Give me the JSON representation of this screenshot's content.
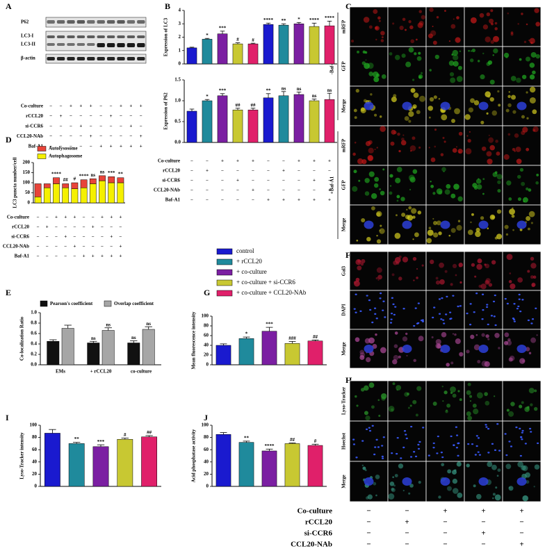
{
  "figure": {
    "panel_labels": [
      "A",
      "B",
      "C",
      "D",
      "E",
      "F",
      "G",
      "H",
      "I",
      "J"
    ],
    "blot_bands": [
      "P62",
      "LC3-I",
      "LC3-II",
      "β-actin"
    ],
    "conditions_10": [
      {
        "label": "Co-culture",
        "marks": [
          "−",
          "−",
          "+",
          "+",
          "+",
          "−",
          "−",
          "+",
          "+",
          "+"
        ]
      },
      {
        "label": "rCCL20",
        "marks": [
          "−",
          "+",
          "−",
          "−",
          "−",
          "−",
          "+",
          "−",
          "−",
          "−"
        ]
      },
      {
        "label": "si-CCR6",
        "marks": [
          "−",
          "−",
          "−",
          "+",
          "−",
          "−",
          "−",
          "−",
          "+",
          "−"
        ]
      },
      {
        "label": "CCL20-NAb",
        "marks": [
          "−",
          "−",
          "−",
          "−",
          "+",
          "−",
          "−",
          "−",
          "−",
          "+"
        ]
      },
      {
        "label": "Baf-A1",
        "marks": [
          "−",
          "−",
          "−",
          "−",
          "−",
          "+",
          "+",
          "+",
          "+",
          "+"
        ]
      }
    ],
    "conditions_5": [
      {
        "label": "Co-culture",
        "marks": [
          "−",
          "−",
          "+",
          "+",
          "+"
        ]
      },
      {
        "label": "rCCL20",
        "marks": [
          "−",
          "+",
          "−",
          "−",
          "−"
        ]
      },
      {
        "label": "si-CCR6",
        "marks": [
          "−",
          "−",
          "−",
          "+",
          "−"
        ]
      },
      {
        "label": "CCL20-NAb",
        "marks": [
          "−",
          "−",
          "−",
          "−",
          "+"
        ]
      }
    ],
    "imaging_c": {
      "groups": [
        "-Baf-A1",
        "+Baf-A1"
      ],
      "rows": [
        "mRFP",
        "GFP",
        "Merge"
      ]
    },
    "imaging_f": {
      "rows": [
        "Gal3",
        "DAPI",
        "Merge"
      ]
    },
    "imaging_h": {
      "rows": [
        "Lyso-Tracker",
        "Hoechst",
        "Merge"
      ]
    }
  },
  "chart_data": [
    {
      "type": "bar",
      "ylabel": "Expression of LC3",
      "ylim": [
        0,
        4
      ],
      "yticks": [
        0,
        1,
        2,
        3,
        4
      ],
      "values": [
        1.2,
        1.85,
        2.25,
        1.5,
        1.5,
        2.95,
        2.9,
        3.0,
        2.8,
        2.85
      ],
      "errors": [
        0.05,
        0.06,
        0.2,
        0.08,
        0.05,
        0.1,
        0.1,
        0.1,
        0.25,
        0.35
      ],
      "annotations": [
        "",
        "*",
        "***",
        "#",
        "#",
        "****",
        "**",
        "*",
        "****",
        "****"
      ],
      "colors": [
        "#1a1acf",
        "#1f8a9c",
        "#7b1fa2",
        "#c8c832",
        "#e0206a",
        "#1a1acf",
        "#1f8a9c",
        "#7b1fa2",
        "#c8c832",
        "#e0206a"
      ]
    },
    {
      "type": "bar",
      "ylabel": "Expression of P62",
      "ylim": [
        0,
        1.5
      ],
      "yticks": [
        {
          "value": 0,
          "label": "0.0"
        },
        0.5,
        {
          "value": 1,
          "label": "1.0"
        },
        1.5
      ],
      "values": [
        0.75,
        1.0,
        1.12,
        0.78,
        0.78,
        1.07,
        1.12,
        1.15,
        1.0,
        1.03
      ],
      "errors": [
        0.05,
        0.03,
        0.05,
        0.04,
        0.04,
        0.1,
        0.1,
        0.06,
        0.04,
        0.15
      ],
      "annotations": [
        "",
        "*",
        "***",
        "##",
        "##",
        "**",
        "ns",
        "ns",
        "ns",
        "ns"
      ],
      "colors": [
        "#1a1acf",
        "#1f8a9c",
        "#7b1fa2",
        "#c8c832",
        "#e0206a",
        "#1a1acf",
        "#1f8a9c",
        "#7b1fa2",
        "#c8c832",
        "#e0206a"
      ]
    },
    {
      "type": "stacked_bar",
      "ylabel": "LC3 puncta number/cell",
      "ylim": [
        0,
        200
      ],
      "yticks": [
        0,
        50,
        100,
        150,
        200
      ],
      "series": [
        {
          "name": "Autolysosome",
          "color": "#e8443a",
          "values": [
            65,
            20,
            30,
            20,
            30,
            40,
            25,
            25,
            30,
            25
          ]
        },
        {
          "name": "Autophagosome",
          "color": "#f5f000",
          "values": [
            30,
            75,
            95,
            75,
            70,
            75,
            95,
            110,
            100,
            100
          ]
        }
      ],
      "annotations": [
        "",
        "",
        "****",
        "##",
        "#",
        "****",
        "ns",
        "ns",
        "***",
        "**"
      ]
    },
    {
      "type": "grouped_bar",
      "ylabel": "Co-localization Ratio",
      "ylim": [
        0,
        1
      ],
      "yticks": [
        {
          "value": 0,
          "label": "0.0"
        },
        0.2,
        0.4,
        0.6,
        0.8,
        {
          "value": 1,
          "label": "1.0"
        }
      ],
      "categories": [
        "EMs",
        "+ rCCL20",
        "co-culture"
      ],
      "series": [
        {
          "name": "Pearson's coefficient",
          "color": "#111111",
          "values": [
            0.45,
            0.42,
            0.42
          ],
          "errors": [
            0.03,
            0.03,
            0.04
          ],
          "annotations": [
            "",
            "ns",
            "ns"
          ]
        },
        {
          "name": "Overlap coefficient",
          "color": "#a6a6a6",
          "values": [
            0.7,
            0.66,
            0.68
          ],
          "errors": [
            0.06,
            0.05,
            0.05
          ],
          "annotations": [
            "",
            "ns",
            "ns"
          ]
        }
      ]
    },
    {
      "type": "bar",
      "ylabel": "Mean fluorescence intensity",
      "ylim": [
        0,
        100
      ],
      "yticks": [
        0,
        20,
        40,
        60,
        80,
        100
      ],
      "categories": [
        "control",
        "+ rCCL20",
        "+ co-culture",
        "+ co-culture + si-CCR6",
        "+ co-culture + CCL20-NAb"
      ],
      "values": [
        40,
        54,
        69,
        44,
        49
      ],
      "errors": [
        3,
        3,
        8,
        4,
        2
      ],
      "annotations": [
        "",
        "*",
        "***",
        "###",
        "##"
      ],
      "colors": [
        "#1a1acf",
        "#1f8a9c",
        "#7b1fa2",
        "#c8c832",
        "#e0206a"
      ]
    },
    {
      "type": "bar",
      "ylabel": "Lyso-Tracker intensity",
      "ylim": [
        0,
        100
      ],
      "yticks": [
        0,
        20,
        40,
        60,
        80,
        100
      ],
      "values": [
        87,
        70,
        65,
        77,
        81
      ],
      "errors": [
        6,
        2,
        3,
        2,
        2
      ],
      "annotations": [
        "",
        "**",
        "***",
        "#",
        "##"
      ],
      "colors": [
        "#1a1acf",
        "#1f8a9c",
        "#7b1fa2",
        "#c8c832",
        "#e0206a"
      ]
    },
    {
      "type": "bar",
      "ylabel": "Acid phosphatase activity",
      "ylim": [
        0,
        100
      ],
      "yticks": [
        0,
        20,
        40,
        60,
        80,
        100
      ],
      "values": [
        85,
        72,
        58,
        70,
        67
      ],
      "errors": [
        3,
        2,
        3,
        1,
        2
      ],
      "annotations": [
        "",
        "**",
        "****",
        "##",
        "#"
      ],
      "colors": [
        "#1a1acf",
        "#1f8a9c",
        "#7b1fa2",
        "#c8c832",
        "#e0206a"
      ]
    }
  ]
}
